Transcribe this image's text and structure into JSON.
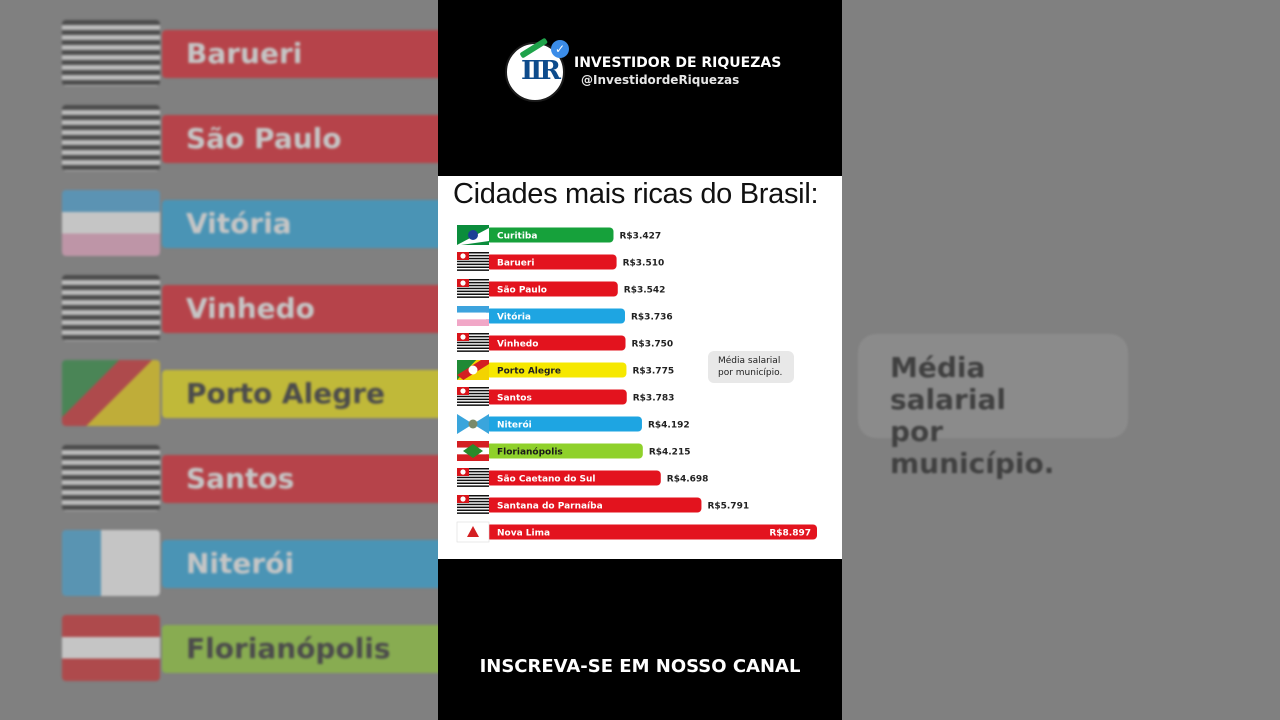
{
  "channel": {
    "name": "INVESTIDOR DE RIQUEZAS",
    "handle": "@InvestidordeRiquezas",
    "avatar_icon": "ir-logo-icon",
    "verified_icon": "verified-check-icon"
  },
  "cta": "INSCREVA-SE EM NOSSO CANAL",
  "tooltip": {
    "line1": "Média salarial",
    "line2": "por município."
  },
  "chart_data": {
    "type": "bar",
    "orientation": "horizontal",
    "title": "Cidades mais ricas do Brasil:",
    "categories": [
      "Curitiba",
      "Barueri",
      "São Paulo",
      "Vitória",
      "Vinhedo",
      "Porto Alegre",
      "Santos",
      "Niterói",
      "Florianópolis",
      "São Caetano do Sul",
      "Santana do Parnaíba",
      "Nova Lima"
    ],
    "values": [
      3427,
      3510,
      3542,
      3736,
      3750,
      3775,
      3783,
      4192,
      4215,
      4698,
      5791,
      8897
    ],
    "value_labels": [
      "R$3.427",
      "R$3.510",
      "R$3.542",
      "R$3.736",
      "R$3.750",
      "R$3.775",
      "R$3.783",
      "R$4.192",
      "R$4.215",
      "R$4.698",
      "R$5.791",
      "R$8.897"
    ],
    "bar_colors": [
      "#16a13b",
      "#e3131e",
      "#e3131e",
      "#1ea5e2",
      "#e3131e",
      "#f6e800",
      "#e3131e",
      "#1ea5e2",
      "#8fd12b",
      "#e3131e",
      "#e3131e",
      "#e3131e"
    ],
    "flags": [
      "flag-parana-icon",
      "flag-sao-paulo-icon",
      "flag-sao-paulo-icon",
      "flag-espirito-santo-icon",
      "flag-sao-paulo-icon",
      "flag-rio-grande-do-sul-icon",
      "flag-sao-paulo-icon",
      "flag-rio-de-janeiro-icon",
      "flag-santa-catarina-icon",
      "flag-sao-paulo-icon",
      "flag-sao-paulo-icon",
      "flag-minas-gerais-icon"
    ],
    "xlim": [
      0,
      8897
    ],
    "grid": false,
    "legend": "none"
  },
  "background": {
    "left_labels": [
      "Barueri",
      "São Paulo",
      "Vitória",
      "Vinhedo",
      "Porto Alegre",
      "Santos",
      "Niterói",
      "Florianópolis"
    ],
    "left_colors": [
      "#e3131e",
      "#e3131e",
      "#1ea5e2",
      "#e3131e",
      "#f6e800",
      "#e3131e",
      "#1ea5e2",
      "#8fd12b"
    ],
    "right_tooltip_line1": "Média salarial",
    "right_tooltip_line2": "por município."
  }
}
